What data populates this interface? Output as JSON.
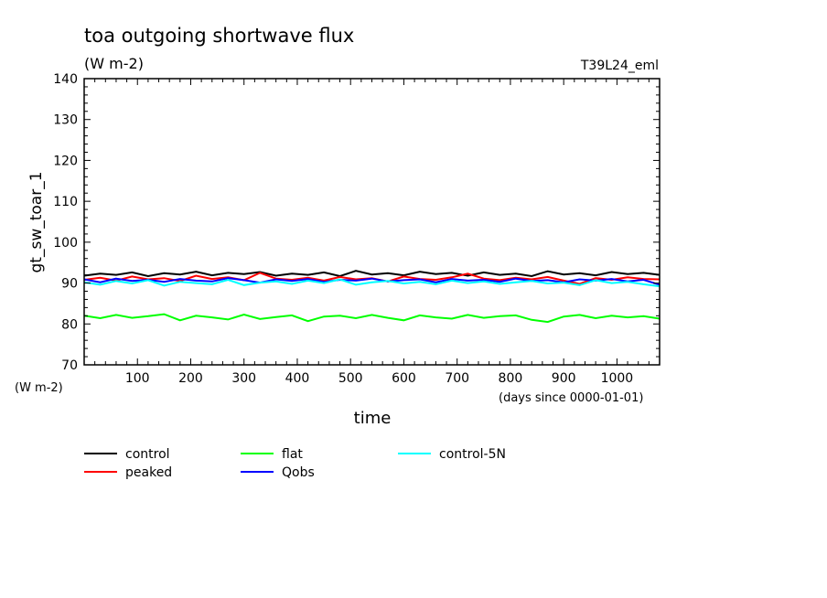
{
  "header": {
    "title": "toa outgoing shortwave flux",
    "units": "(W m-2)",
    "run_label": "T39L24_eml"
  },
  "chart_data": {
    "type": "line",
    "title": "toa outgoing shortwave flux",
    "subtitle": "(W m-2)",
    "xlabel": "time",
    "x_units": "(days since 0000-01-01)",
    "ylabel": "gt_sw_toar_1",
    "y_units": "(W m-2)",
    "xlim": [
      0,
      1080
    ],
    "ylim": [
      70,
      140
    ],
    "x_ticks": [
      100,
      200,
      300,
      400,
      500,
      600,
      700,
      800,
      900,
      1000
    ],
    "y_ticks": [
      70,
      80,
      90,
      100,
      110,
      120,
      130,
      140
    ],
    "legend_position": "bottom",
    "grid": false,
    "series": [
      {
        "name": "control",
        "color": "#000000",
        "x": [
          0,
          30,
          60,
          90,
          120,
          150,
          180,
          210,
          240,
          270,
          300,
          330,
          360,
          390,
          420,
          450,
          480,
          510,
          540,
          570,
          600,
          630,
          660,
          690,
          720,
          750,
          780,
          810,
          840,
          870,
          900,
          930,
          960,
          990,
          1020,
          1050,
          1080
        ],
        "y": [
          91.8,
          92.3,
          92.0,
          92.6,
          91.7,
          92.4,
          92.1,
          92.8,
          91.9,
          92.5,
          92.2,
          92.7,
          91.8,
          92.3,
          92.0,
          92.6,
          91.7,
          93.0,
          92.1,
          92.4,
          91.9,
          92.8,
          92.2,
          92.5,
          91.8,
          92.6,
          92.0,
          92.3,
          91.7,
          92.9,
          92.1,
          92.4,
          91.9,
          92.7,
          92.2,
          92.5,
          92.0
        ]
      },
      {
        "name": "peaked",
        "color": "#ff0000",
        "x": [
          0,
          30,
          60,
          90,
          120,
          150,
          180,
          210,
          240,
          270,
          300,
          330,
          360,
          390,
          420,
          450,
          480,
          510,
          540,
          570,
          600,
          630,
          660,
          690,
          720,
          750,
          780,
          810,
          840,
          870,
          900,
          930,
          960,
          990,
          1020,
          1050,
          1080
        ],
        "y": [
          90.8,
          91.3,
          90.6,
          91.6,
          90.9,
          91.2,
          90.5,
          91.8,
          91.0,
          91.4,
          90.7,
          92.5,
          91.1,
          90.8,
          91.3,
          90.6,
          91.5,
          90.9,
          91.2,
          90.4,
          91.6,
          91.0,
          90.8,
          91.4,
          92.3,
          91.1,
          90.7,
          91.3,
          90.9,
          91.5,
          90.6,
          89.8,
          91.2,
          90.8,
          91.4,
          91.0,
          90.9
        ]
      },
      {
        "name": "flat",
        "color": "#00ff00",
        "x": [
          0,
          30,
          60,
          90,
          120,
          150,
          180,
          210,
          240,
          270,
          300,
          330,
          360,
          390,
          420,
          450,
          480,
          510,
          540,
          570,
          600,
          630,
          660,
          690,
          720,
          750,
          780,
          810,
          840,
          870,
          900,
          930,
          960,
          990,
          1020,
          1050,
          1080
        ],
        "y": [
          82.0,
          81.4,
          82.2,
          81.5,
          81.9,
          82.4,
          80.9,
          82.0,
          81.6,
          81.1,
          82.3,
          81.2,
          81.7,
          82.1,
          80.7,
          81.8,
          82.0,
          81.4,
          82.2,
          81.5,
          80.9,
          82.1,
          81.6,
          81.3,
          82.2,
          81.5,
          81.9,
          82.1,
          81.0,
          80.5,
          81.8,
          82.2,
          81.4,
          82.0,
          81.6,
          81.9,
          81.3
        ]
      },
      {
        "name": "Qobs",
        "color": "#0000ff",
        "x": [
          0,
          30,
          60,
          90,
          120,
          150,
          180,
          210,
          240,
          270,
          300,
          330,
          360,
          390,
          420,
          450,
          480,
          510,
          540,
          570,
          600,
          630,
          660,
          690,
          720,
          750,
          780,
          810,
          840,
          870,
          900,
          930,
          960,
          990,
          1020,
          1050,
          1080
        ],
        "y": [
          90.9,
          90.2,
          91.1,
          90.5,
          90.8,
          90.3,
          91.0,
          90.6,
          90.4,
          91.2,
          90.7,
          90.1,
          90.9,
          90.5,
          91.0,
          90.3,
          90.8,
          90.6,
          91.1,
          90.4,
          90.7,
          90.9,
          90.2,
          91.0,
          90.6,
          90.8,
          90.3,
          91.1,
          90.5,
          90.7,
          90.2,
          90.9,
          90.6,
          91.0,
          90.4,
          90.8,
          89.6
        ]
      },
      {
        "name": "control-5N",
        "color": "#00ffff",
        "x": [
          0,
          30,
          60,
          90,
          120,
          150,
          180,
          210,
          240,
          270,
          300,
          330,
          360,
          390,
          420,
          450,
          480,
          510,
          540,
          570,
          600,
          630,
          660,
          690,
          720,
          750,
          780,
          810,
          840,
          870,
          900,
          930,
          960,
          990,
          1020,
          1050,
          1080
        ],
        "y": [
          90.2,
          89.6,
          90.5,
          89.9,
          90.7,
          89.4,
          90.3,
          90.0,
          89.7,
          90.8,
          89.5,
          90.1,
          90.4,
          89.8,
          90.6,
          90.0,
          90.9,
          89.6,
          90.2,
          90.5,
          89.9,
          90.3,
          89.7,
          90.6,
          90.0,
          90.4,
          89.8,
          90.2,
          90.5,
          89.9,
          90.1,
          89.5,
          90.7,
          90.0,
          90.3,
          89.7,
          89.2
        ]
      }
    ]
  }
}
